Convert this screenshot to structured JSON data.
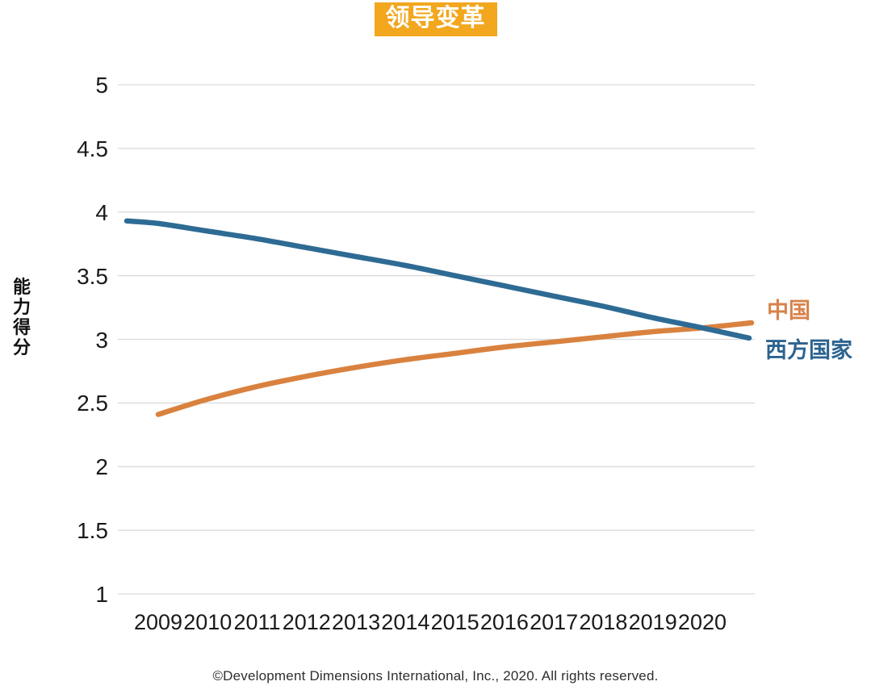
{
  "title": {
    "text": "领导变革"
  },
  "y_axis": {
    "label": "能力得分",
    "tick_labels": [
      "5",
      "4.5",
      "4",
      "3.5",
      "3",
      "2.5",
      "2",
      "1.5",
      "1"
    ]
  },
  "x_axis": {
    "tick_labels": [
      "2009",
      "2010",
      "2011",
      "2012",
      "2013",
      "2014",
      "2015",
      "2016",
      "2017",
      "2018",
      "2019",
      "2020"
    ]
  },
  "footer": "©Development Dimensions International, Inc., 2020. All rights reserved.",
  "colors": {
    "china_line": "#D9823F",
    "west_line": "#2E6B94",
    "china_label_text": "#D8824A",
    "west_label_text": "#2C6390",
    "title_bg": "#F2A71E",
    "title_text": "#FFFFFF",
    "gridline": "#D9D9D9"
  },
  "chart_data": {
    "type": "line",
    "title": "领导变革",
    "xlabel": "",
    "ylabel": "能力得分",
    "ylim": [
      1,
      5
    ],
    "ytick_step": 0.5,
    "grid": true,
    "legend_position": "right of line ends",
    "categories": [
      2009,
      2010,
      2011,
      2012,
      2013,
      2014,
      2015,
      2016,
      2017,
      2018,
      2019,
      2020
    ],
    "series": [
      {
        "name": "中国",
        "color": "#D9823F",
        "values": [
          2.41,
          2.53,
          2.63,
          2.71,
          2.78,
          2.84,
          2.89,
          2.94,
          2.98,
          3.02,
          3.06,
          3.09
        ],
        "edge_end_value": 3.13
      },
      {
        "name": "西方国家",
        "color": "#2E6B94",
        "values": [
          3.91,
          3.85,
          3.79,
          3.72,
          3.65,
          3.58,
          3.5,
          3.42,
          3.34,
          3.26,
          3.17,
          3.09
        ],
        "edge_start_value": 3.93,
        "edge_end_value": 3.01
      }
    ],
    "annotations": "两条曲线在2020年附近交叉，中国上升、西方国家下降"
  }
}
